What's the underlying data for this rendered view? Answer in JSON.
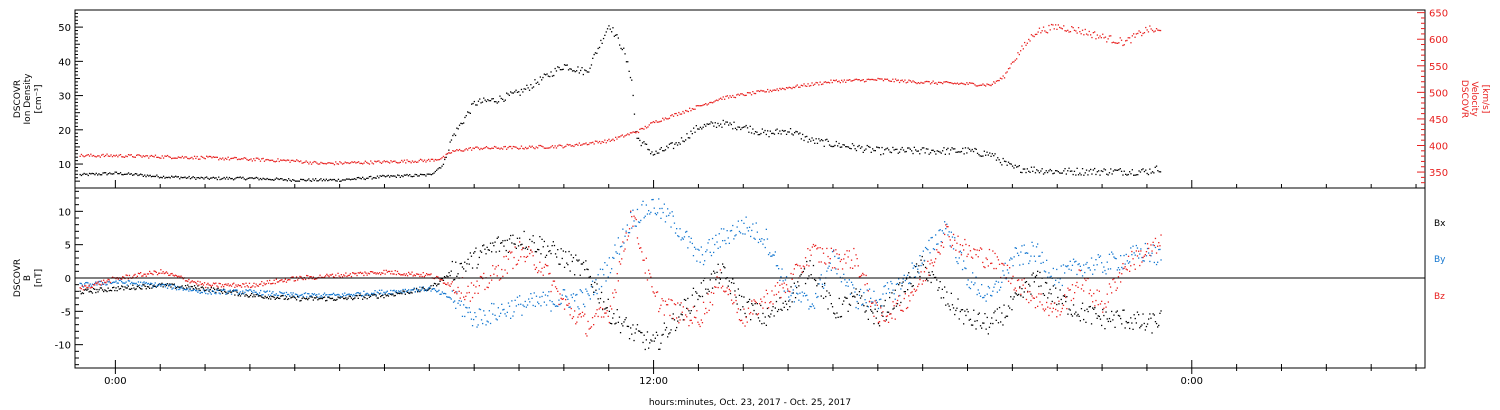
{
  "colors": {
    "axis": "#000000",
    "velocity": "#e8201f",
    "density": "#000000",
    "bx": "#000000",
    "by": "#1477d0",
    "bz": "#e8201f"
  },
  "x_axis": {
    "xlabel": "hours:minutes, Oct. 23, 2017 - Oct. 25, 2017",
    "range_hours": [
      -0.9,
      29.2
    ],
    "tick_labels": [
      {
        "hour": 0,
        "label": "0:00"
      },
      {
        "hour": 12,
        "label": "12:00"
      },
      {
        "hour": 24,
        "label": "0:00"
      }
    ]
  },
  "top_panel": {
    "left_axis": {
      "line1": "DSCOVR",
      "line2": "Ion Density",
      "line3": "[cm⁻³]",
      "tick_labels": [
        "10",
        "20",
        "30",
        "40",
        "50"
      ],
      "ylim": [
        3,
        55
      ]
    },
    "right_axis": {
      "line1": "DSCOVR",
      "line2": "Velocity",
      "line3": "[km/s]",
      "tick_labels": [
        "350",
        "400",
        "450",
        "500",
        "550",
        "600",
        "650"
      ],
      "ylim": [
        320,
        655
      ]
    }
  },
  "bottom_panel": {
    "left_axis": {
      "line1": "DSCOVR",
      "line2": "B",
      "line3": "[nT]",
      "tick_labels": [
        "10",
        "5",
        "0",
        "-5",
        "-10"
      ],
      "ylim": [
        -13.5,
        13.5
      ]
    },
    "legend": {
      "bx": "Bx",
      "by": "By",
      "bz": "Bz"
    }
  },
  "chart_data": [
    {
      "type": "scatter",
      "title": "",
      "xlabel": "hours:minutes, Oct. 23, 2017 - Oct. 25, 2017",
      "ylabel": "DSCOVR Ion Density [cm⁻³]",
      "y2label": "DSCOVR Velocity [km/s]",
      "grid": false,
      "series": [
        {
          "name": "Ion Density",
          "axis": "left",
          "color": "#000000",
          "x": [
            -0.8,
            0,
            1,
            2,
            3,
            4,
            5,
            6,
            7,
            7.3,
            7.5,
            8,
            8.5,
            9,
            9.5,
            10,
            10.5,
            11,
            11.3,
            11.5,
            11.6,
            12,
            12.5,
            13,
            13.5,
            14,
            14.5,
            15,
            15.5,
            16,
            16.5,
            17,
            18,
            19,
            19.5,
            20,
            21,
            22,
            23,
            23.3
          ],
          "y": [
            7,
            7.5,
            6.5,
            6,
            6,
            5.5,
            5.5,
            6.5,
            7,
            10,
            18,
            28,
            29,
            31,
            35,
            39,
            37,
            51,
            44,
            35,
            18,
            13,
            16,
            21,
            22,
            21,
            19,
            20,
            17,
            16,
            15,
            14,
            14,
            14,
            13,
            9,
            8,
            8,
            8,
            9
          ]
        },
        {
          "name": "Velocity",
          "axis": "right",
          "color": "#e8201f",
          "x": [
            -0.8,
            0,
            1,
            2,
            3,
            4,
            4.6,
            5,
            6,
            7,
            7.3,
            7.5,
            8,
            9,
            10,
            11,
            11.7,
            12,
            12.5,
            13,
            13.5,
            14,
            15,
            16,
            17,
            18,
            19,
            19.5,
            19.8,
            20,
            20.5,
            21,
            21.5,
            22,
            22.5,
            23,
            23.3
          ],
          "y": [
            382,
            382,
            380,
            378,
            375,
            372,
            367,
            368,
            370,
            373,
            378,
            390,
            396,
            397,
            400,
            410,
            430,
            445,
            460,
            475,
            490,
            497,
            510,
            522,
            525,
            520,
            517,
            515,
            530,
            560,
            615,
            625,
            617,
            605,
            595,
            620,
            615
          ]
        }
      ]
    },
    {
      "type": "scatter",
      "title": "",
      "xlabel": "hours:minutes, Oct. 23, 2017 - Oct. 25, 2017",
      "ylabel": "DSCOVR B [nT]",
      "grid": false,
      "series": [
        {
          "name": "Bx",
          "color": "#000000",
          "x": [
            -0.8,
            0,
            1,
            2,
            3,
            4,
            5,
            6,
            7,
            7.5,
            8,
            8.5,
            9,
            9.5,
            10,
            10.5,
            11,
            11.5,
            12,
            12.5,
            13,
            13.5,
            14,
            14.5,
            15,
            15.5,
            16,
            16.5,
            17,
            17.5,
            18,
            18.5,
            19,
            19.5,
            20,
            20.5,
            21,
            21.5,
            22,
            22.5,
            23,
            23.3
          ],
          "y": [
            -2,
            -1.5,
            -1,
            -1.5,
            -2.5,
            -3,
            -3,
            -2.5,
            -1.5,
            1,
            3,
            5,
            6,
            5,
            3,
            1,
            -5,
            -8,
            -10,
            -6,
            -2,
            1,
            -4,
            -6,
            -3,
            2,
            -5,
            -3,
            -6,
            -2,
            2,
            -3,
            -6,
            -7,
            -4,
            0,
            -3,
            -5,
            -6,
            -6,
            -7,
            -6
          ]
        },
        {
          "name": "By",
          "color": "#1477d0",
          "x": [
            -0.8,
            0,
            1,
            2,
            3,
            4,
            5,
            6,
            7,
            7.5,
            8,
            8.5,
            9,
            9.5,
            10,
            10.5,
            11,
            11.5,
            12,
            12.5,
            13,
            13.5,
            14,
            14.5,
            15,
            15.5,
            16,
            16.5,
            17,
            17.5,
            18,
            18.5,
            19,
            19.5,
            20,
            20.5,
            21,
            21.5,
            22,
            22.5,
            23,
            23.3
          ],
          "y": [
            -1,
            -0.5,
            -1,
            -2,
            -2,
            -2.5,
            -2.5,
            -2,
            -1.5,
            -3,
            -6,
            -5,
            -4,
            -3.5,
            -3,
            -3,
            2,
            9,
            11,
            8,
            3,
            6,
            8,
            6,
            -2,
            -4,
            3,
            -3,
            -3,
            -1,
            3,
            8,
            0,
            -3,
            3,
            4,
            0,
            2,
            2,
            3,
            4,
            3
          ]
        },
        {
          "name": "Bz",
          "color": "#e8201f",
          "x": [
            -0.8,
            0,
            1,
            2,
            3,
            4,
            5,
            6,
            7,
            7.5,
            8,
            8.5,
            9,
            9.5,
            10,
            10.5,
            11,
            11.5,
            12,
            12.5,
            13,
            13.5,
            14,
            14.5,
            15,
            15.5,
            16,
            16.5,
            17,
            17.5,
            18,
            18.5,
            19,
            19.5,
            20,
            20.5,
            21,
            21.5,
            22,
            22.5,
            23,
            23.3
          ],
          "y": [
            -1.5,
            0,
            1,
            -1,
            -1,
            0,
            0.5,
            1,
            0.5,
            -1,
            -2,
            1,
            4,
            2,
            -4,
            -7,
            -5,
            10,
            -3,
            -5,
            -6,
            0,
            -6,
            -3,
            -1,
            4,
            3,
            3,
            -6,
            -4,
            0,
            7,
            4,
            3,
            0,
            -3,
            -5,
            0,
            -4,
            2,
            4,
            5
          ]
        }
      ]
    }
  ]
}
